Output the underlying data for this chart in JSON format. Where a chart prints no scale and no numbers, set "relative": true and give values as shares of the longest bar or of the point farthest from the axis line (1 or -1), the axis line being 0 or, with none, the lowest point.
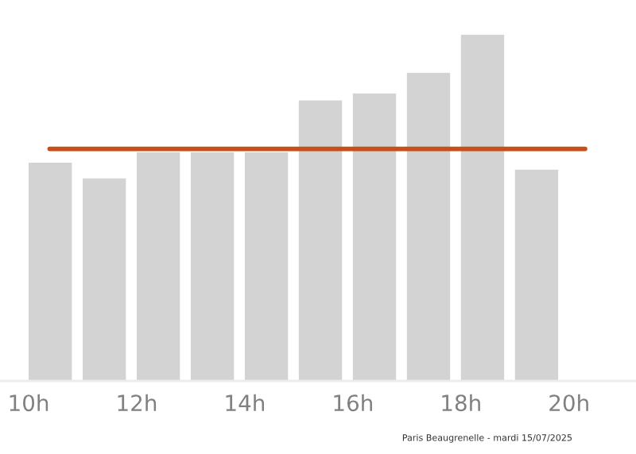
{
  "chart_data": {
    "type": "bar",
    "relative": true,
    "x": [
      10.4,
      11.4,
      12.4,
      13.4,
      14.4,
      15.4,
      16.4,
      17.4,
      18.4,
      19.4
    ],
    "values": [
      0.63,
      0.585,
      0.66,
      0.66,
      0.66,
      0.81,
      0.83,
      0.89,
      1,
      0.61
    ],
    "color": "#d3d3d3",
    "xlim": [
      9.47,
      21.24
    ],
    "xticks": [
      {
        "value": 10,
        "label": "10h"
      },
      {
        "value": 12,
        "label": "12h"
      },
      {
        "value": 14,
        "label": "14h"
      },
      {
        "value": 16,
        "label": "16h"
      },
      {
        "value": 18,
        "label": "18h"
      },
      {
        "value": 20,
        "label": "20h"
      }
    ],
    "ref_lines": [
      {
        "axis": "y",
        "value": 0.67,
        "color": "#c5501a"
      }
    ],
    "annotations": [
      "Paris Beaugrenelle - mardi 15/07/2025"
    ],
    "grid": false,
    "legend": false
  }
}
